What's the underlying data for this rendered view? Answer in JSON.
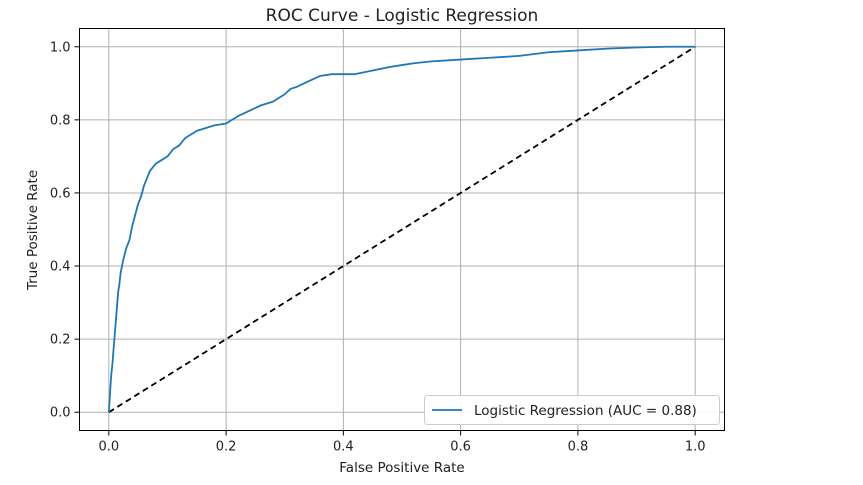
{
  "chart_data": {
    "type": "line",
    "title": "ROC Curve - Logistic Regression",
    "xlabel": "False Positive Rate",
    "ylabel": "True Positive Rate",
    "xlim": [
      -0.05,
      1.05
    ],
    "ylim": [
      -0.05,
      1.05
    ],
    "xticks": [
      "0.0",
      "0.2",
      "0.4",
      "0.6",
      "0.8",
      "1.0"
    ],
    "yticks": [
      "0.0",
      "0.2",
      "0.4",
      "0.6",
      "0.8",
      "1.0"
    ],
    "grid": true,
    "legend": {
      "placement": "lower-right"
    },
    "colors": {
      "roc": "#1f77b4",
      "baseline": "#000000"
    },
    "series": [
      {
        "name": "Logistic Regression (AUC = 0.88)",
        "style": "solid",
        "x": [
          0.0,
          0.002,
          0.004,
          0.006,
          0.008,
          0.01,
          0.012,
          0.014,
          0.016,
          0.018,
          0.02,
          0.025,
          0.03,
          0.035,
          0.04,
          0.045,
          0.05,
          0.055,
          0.06,
          0.065,
          0.07,
          0.08,
          0.09,
          0.1,
          0.11,
          0.12,
          0.13,
          0.14,
          0.15,
          0.16,
          0.18,
          0.2,
          0.22,
          0.24,
          0.26,
          0.28,
          0.3,
          0.31,
          0.32,
          0.34,
          0.36,
          0.38,
          0.4,
          0.42,
          0.45,
          0.48,
          0.5,
          0.52,
          0.55,
          0.6,
          0.65,
          0.7,
          0.75,
          0.8,
          0.85,
          0.9,
          0.95,
          1.0
        ],
        "y": [
          0.0,
          0.05,
          0.1,
          0.13,
          0.17,
          0.21,
          0.25,
          0.29,
          0.33,
          0.35,
          0.38,
          0.42,
          0.45,
          0.47,
          0.51,
          0.54,
          0.57,
          0.59,
          0.62,
          0.64,
          0.66,
          0.68,
          0.69,
          0.7,
          0.72,
          0.73,
          0.75,
          0.76,
          0.77,
          0.775,
          0.785,
          0.79,
          0.81,
          0.825,
          0.84,
          0.85,
          0.87,
          0.885,
          0.89,
          0.905,
          0.92,
          0.925,
          0.925,
          0.925,
          0.935,
          0.945,
          0.95,
          0.955,
          0.96,
          0.965,
          0.97,
          0.975,
          0.985,
          0.99,
          0.995,
          0.998,
          1.0,
          1.0
        ]
      },
      {
        "name": "",
        "style": "dashed",
        "x": [
          0.0,
          1.0
        ],
        "y": [
          0.0,
          1.0
        ]
      }
    ]
  }
}
